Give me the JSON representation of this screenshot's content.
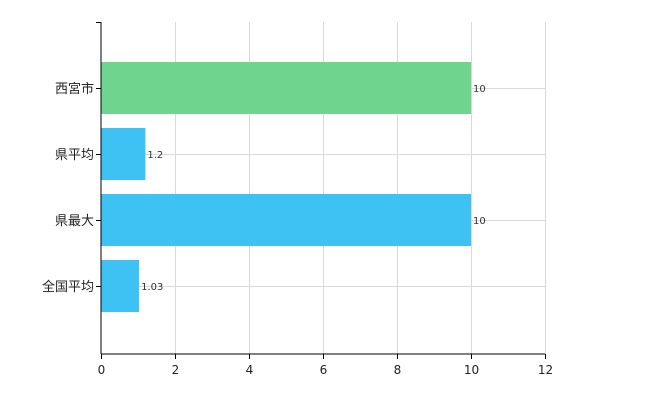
{
  "chart_data": {
    "type": "bar",
    "orientation": "horizontal",
    "categories": [
      "西宮市",
      "県平均",
      "県最大",
      "全国平均"
    ],
    "values": [
      10,
      1.2,
      10,
      1.03
    ],
    "value_labels": [
      "10",
      "1.2",
      "10",
      "1.03"
    ],
    "bar_colors": [
      "#6ed48e",
      "#3ec1f3",
      "#3ec1f3",
      "#3ec1f3"
    ],
    "title": "",
    "xlabel": "",
    "ylabel": "",
    "xlim": [
      0,
      12
    ],
    "x_ticks": [
      0,
      2,
      4,
      6,
      8,
      10,
      12
    ],
    "x_tick_labels": [
      "0",
      "2",
      "4",
      "6",
      "8",
      "10",
      "12"
    ],
    "grid": true,
    "grid_color": "#d9d9d9",
    "axis_color": "#000000",
    "legend": false
  }
}
